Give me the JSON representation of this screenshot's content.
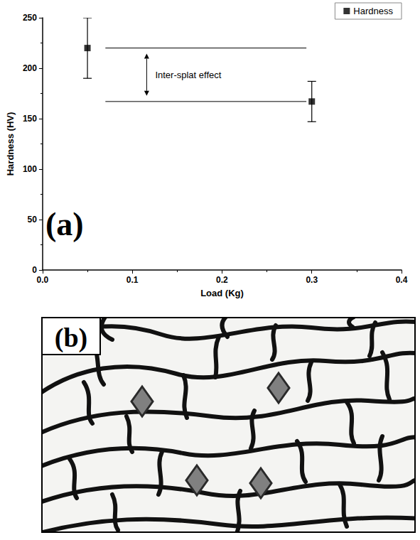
{
  "chart_data": {
    "type": "scatter",
    "panel_label": "(a)",
    "x_label": "Load (Kg)",
    "y_label": "Hardness (HV)",
    "series": [
      {
        "name": "Hardness",
        "color": "#000000",
        "marker": "square",
        "x": [
          0.05,
          0.3
        ],
        "values": [
          220,
          167
        ],
        "error": [
          30,
          20
        ]
      }
    ],
    "xlim": [
      0,
      0.4
    ],
    "xticks": [
      {
        "value": 0,
        "label": "0.0"
      },
      0.1,
      0.2,
      0.3,
      0.4
    ],
    "ylim": [
      0,
      250
    ],
    "yticks": [
      0,
      50,
      100,
      150,
      200,
      250
    ],
    "grid": false,
    "legend": "top-right",
    "annotations": [
      {
        "text": "Inter-splat effect"
      }
    ]
  },
  "diagram": {
    "panel_label": "(b)"
  }
}
